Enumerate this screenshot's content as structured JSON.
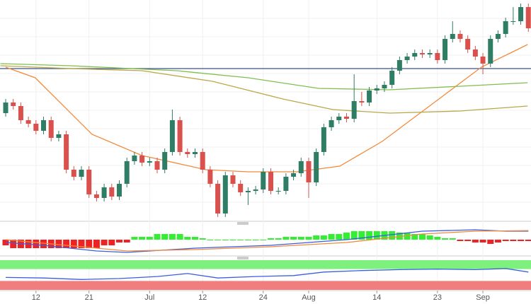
{
  "chart_data": [
    {
      "type": "candlestick",
      "categories": [
        null,
        null,
        null,
        null,
        "12",
        null,
        null,
        null,
        null,
        null,
        null,
        "21",
        null,
        null,
        null,
        null,
        null,
        null,
        null,
        "Jul",
        null,
        null,
        null,
        null,
        null,
        null,
        "12",
        null,
        null,
        null,
        null,
        null,
        null,
        null,
        "24",
        null,
        null,
        null,
        null,
        null,
        "Aug",
        null,
        null,
        null,
        null,
        null,
        null,
        null,
        null,
        "14",
        null,
        null,
        null,
        null,
        null,
        null,
        null,
        "23",
        null,
        null,
        null,
        null,
        null,
        "Sep",
        null,
        null,
        null,
        null,
        null,
        null
      ],
      "open": [
        150,
        165,
        160,
        140,
        135,
        125,
        140,
        115,
        120,
        70,
        60,
        70,
        35,
        30,
        45,
        32,
        50,
        82,
        90,
        80,
        82,
        70,
        95,
        140,
        95,
        92,
        95,
        70,
        50,
        8,
        62,
        50,
        38,
        40,
        42,
        67,
        40,
        40,
        60,
        65,
        82,
        52,
        95,
        130,
        140,
        145,
        142,
        167,
        165,
        182,
        185,
        190,
        210,
        225,
        230,
        235,
        233,
        235,
        225,
        255,
        262,
        255,
        240,
        230,
        220,
        255,
        262,
        280,
        280,
        300
      ],
      "close": [
        165,
        160,
        140,
        135,
        125,
        140,
        115,
        120,
        70,
        60,
        70,
        35,
        30,
        45,
        32,
        50,
        82,
        90,
        80,
        82,
        70,
        95,
        140,
        95,
        92,
        95,
        70,
        50,
        8,
        62,
        50,
        38,
        40,
        42,
        67,
        40,
        40,
        60,
        65,
        82,
        52,
        95,
        130,
        140,
        145,
        142,
        167,
        165,
        182,
        185,
        190,
        210,
        225,
        230,
        235,
        233,
        235,
        225,
        255,
        262,
        255,
        240,
        230,
        220,
        255,
        262,
        280,
        280,
        300,
        270
      ],
      "high": [
        170,
        170,
        165,
        145,
        140,
        145,
        145,
        125,
        125,
        75,
        75,
        75,
        40,
        50,
        50,
        55,
        87,
        95,
        95,
        87,
        87,
        100,
        155,
        145,
        100,
        100,
        100,
        75,
        55,
        67,
        67,
        55,
        45,
        47,
        72,
        72,
        45,
        65,
        70,
        87,
        87,
        100,
        135,
        145,
        150,
        150,
        205,
        180,
        187,
        190,
        195,
        215,
        230,
        235,
        240,
        240,
        240,
        240,
        260,
        280,
        267,
        260,
        245,
        235,
        260,
        267,
        285,
        300,
        305,
        305
      ],
      "low": [
        145,
        155,
        135,
        130,
        120,
        120,
        110,
        110,
        65,
        55,
        55,
        30,
        25,
        25,
        27,
        27,
        45,
        77,
        75,
        75,
        65,
        65,
        90,
        90,
        87,
        87,
        65,
        45,
        3,
        3,
        45,
        33,
        20,
        35,
        37,
        35,
        35,
        35,
        55,
        60,
        30,
        47,
        90,
        125,
        135,
        137,
        137,
        160,
        160,
        177,
        180,
        185,
        205,
        220,
        225,
        228,
        228,
        220,
        220,
        250,
        250,
        235,
        225,
        205,
        215,
        250,
        257,
        275,
        275,
        265
      ],
      "up_color": "#2e7d64",
      "down_color": "#d9504c",
      "xlim": [
        -0.75,
        69.35
      ],
      "ylim": [
        0,
        310
      ],
      "hline": 213,
      "hline_color": "#3e5187",
      "series": [
        {
          "color": "#f28a3c",
          "x": [
            0,
            3.9,
            11.4,
            18,
            26.4,
            32,
            38.5,
            44.1,
            49.7,
            57.2,
            62.8,
            68.9
          ],
          "values": [
            215,
            200,
            120,
            90,
            70,
            67,
            67,
            75,
            110,
            170,
            215,
            247
          ]
        },
        {
          "color": "#7fbf4d",
          "x": [
            -0.7,
            8.6,
            22.6,
            32,
            41.3,
            50.7,
            60,
            68.9
          ],
          "values": [
            220,
            217,
            210,
            200,
            185,
            183,
            188,
            193
          ]
        },
        {
          "color": "#b9a84a",
          "x": [
            -0.7,
            8.6,
            18,
            27.3,
            36.6,
            43.2,
            50.7,
            60,
            68.9
          ],
          "values": [
            217,
            213,
            210,
            195,
            170,
            155,
            150,
            153,
            160
          ]
        }
      ]
    },
    {
      "type": "macd",
      "ylim": [
        -5,
        5
      ],
      "histogram": [
        -2,
        -3,
        -3,
        -3,
        -3,
        -3,
        -3,
        -3,
        -3,
        -3,
        -3,
        -3,
        -3,
        -2,
        -2,
        -1,
        -1,
        1,
        1,
        1,
        2,
        2,
        2,
        2,
        1,
        1,
        0.5,
        0,
        0,
        0,
        0,
        0,
        0,
        0,
        0,
        0.5,
        0.5,
        1,
        1,
        1,
        1,
        1.5,
        1.5,
        2,
        2,
        2.5,
        3,
        3,
        3,
        3,
        3,
        3,
        2.5,
        2.5,
        2,
        2,
        1.5,
        1,
        0.5,
        0.5,
        -0.5,
        -0.5,
        -1,
        -1,
        -1.5,
        -1,
        -0.5,
        -0.5,
        -0.5,
        -0.5
      ],
      "up_color": "#33ee33",
      "down_color": "#ee2222",
      "series": [
        {
          "color": "#3a5ee0",
          "x": [
            0,
            5,
            12,
            16,
            25,
            35,
            45,
            55,
            62,
            66,
            69
          ],
          "values": [
            -1,
            -2,
            -4,
            -4.5,
            -3,
            -2,
            0,
            3,
            3.5,
            3,
            3
          ]
        },
        {
          "color": "#f28a3c",
          "x": [
            0,
            8,
            16,
            25,
            35,
            45,
            55,
            62,
            69
          ],
          "values": [
            0,
            -2,
            -4,
            -3.5,
            -2.5,
            -1,
            2,
            3,
            3.2
          ]
        }
      ]
    },
    {
      "type": "line",
      "ylim": [
        0,
        100
      ],
      "upper_band": 70,
      "lower_band": 30,
      "upper_color": "#7ef07e",
      "lower_color": "#f07e7e",
      "series": [
        {
          "color": "#3a5ee0",
          "x": [
            0,
            5,
            10,
            15,
            20,
            24,
            28,
            33,
            38,
            42,
            47,
            52,
            57,
            62,
            66,
            69
          ],
          "values": [
            42,
            40,
            35,
            38,
            45,
            55,
            40,
            45,
            48,
            60,
            65,
            68,
            70,
            68,
            72,
            60
          ]
        }
      ]
    }
  ]
}
